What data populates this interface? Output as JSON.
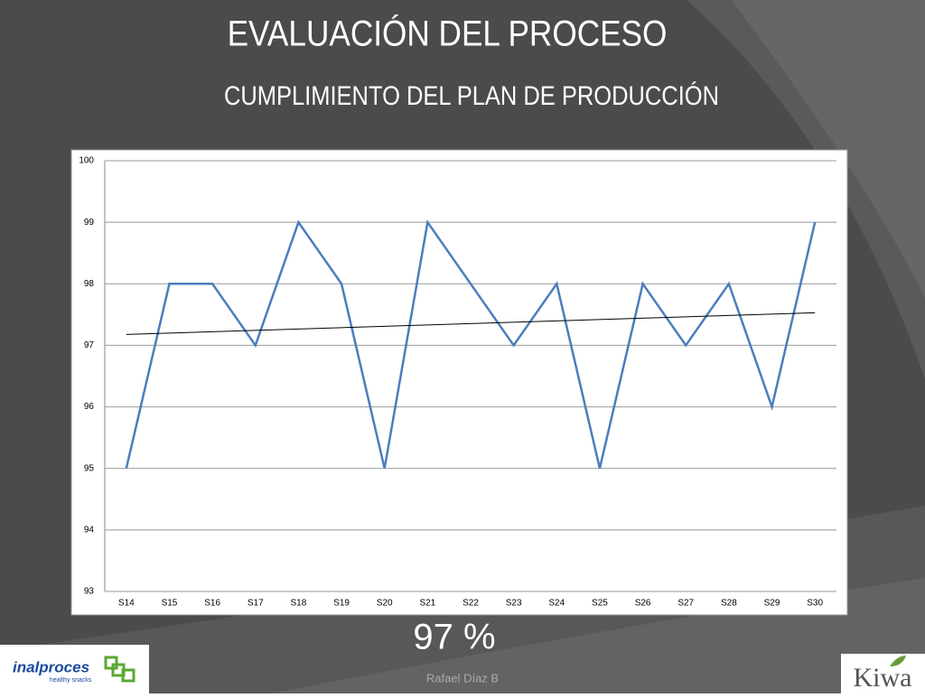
{
  "title": "EVALUACIÓN DEL PROCESO",
  "subtitle": "CUMPLIMIENTO DEL PLAN DE PRODUCCIÓN",
  "chart_data": {
    "type": "line",
    "categories": [
      "S14",
      "S15",
      "S16",
      "S17",
      "S18",
      "S19",
      "S20",
      "S21",
      "S22",
      "S23",
      "S24",
      "S25",
      "S26",
      "S27",
      "S28",
      "S29",
      "S30"
    ],
    "values": [
      95,
      98,
      98,
      97,
      99,
      98,
      95,
      99,
      98,
      97,
      98,
      95,
      98,
      97,
      98,
      96,
      99
    ],
    "color": "#4a7ebb",
    "ylim": [
      93,
      100
    ],
    "yticks": [
      93,
      94,
      95,
      96,
      97,
      98,
      99,
      100
    ],
    "grid": true,
    "trendline": "linear"
  },
  "annotation": "97 %",
  "footer": "Rafael Díaz B",
  "logo_left": {
    "name": "inalproces",
    "tagline": "healthy snacks"
  },
  "logo_right": "Kiwa"
}
